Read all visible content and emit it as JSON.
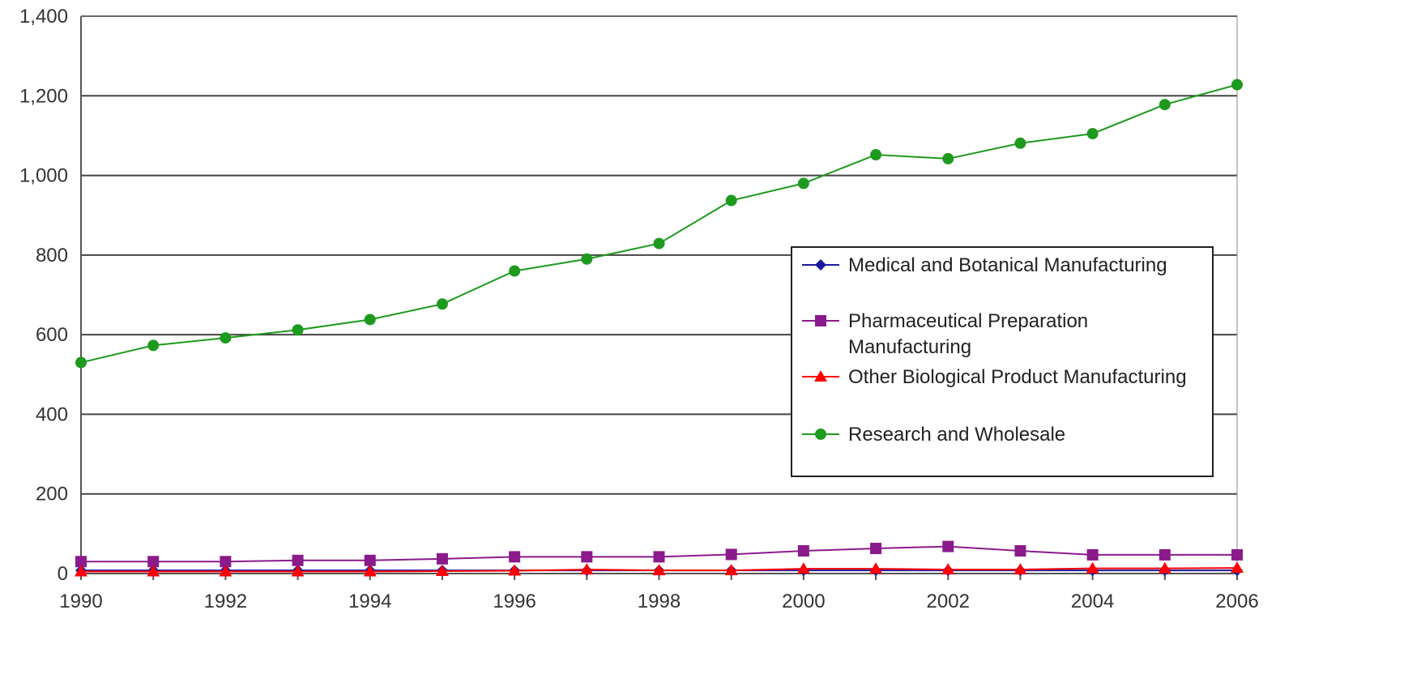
{
  "chart_data": {
    "type": "line",
    "title": "",
    "xlabel": "",
    "ylabel": "",
    "x": [
      1990,
      1991,
      1992,
      1993,
      1994,
      1995,
      1996,
      1997,
      1998,
      1999,
      2000,
      2001,
      2002,
      2003,
      2004,
      2005,
      2006
    ],
    "x_tick_labels": [
      "1990",
      "1992",
      "1994",
      "1996",
      "1998",
      "2000",
      "2002",
      "2004",
      "2006"
    ],
    "y_tick_labels": [
      "0",
      "200",
      "400",
      "600",
      "800",
      "1,000",
      "1,200",
      "1,400"
    ],
    "xlim": [
      1990,
      2006
    ],
    "ylim": [
      0,
      1400
    ],
    "grid": "horizontal",
    "legend_position": "right",
    "series": [
      {
        "name": "Medical and Botanical Manufacturing",
        "marker": "diamond",
        "color": "#1a1aa0",
        "values": [
          8,
          8,
          8,
          8,
          8,
          8,
          8,
          8,
          8,
          8,
          8,
          8,
          8,
          8,
          8,
          8,
          8
        ]
      },
      {
        "name": "Pharmaceutical Preparation Manufacturing",
        "marker": "square",
        "color": "#8b1a8b",
        "values": [
          30,
          30,
          30,
          33,
          33,
          37,
          42,
          42,
          42,
          48,
          57,
          63,
          68,
          57,
          47,
          47,
          47
        ]
      },
      {
        "name": "Other Biological Product Manufacturing",
        "marker": "triangle",
        "color": "#ff0000",
        "values": [
          5,
          5,
          5,
          5,
          5,
          6,
          7,
          10,
          8,
          8,
          12,
          12,
          10,
          10,
          13,
          13,
          14
        ]
      },
      {
        "name": "Research and Wholesale",
        "marker": "circle",
        "color": "#1e9a1e",
        "values": [
          530,
          573,
          592,
          612,
          638,
          677,
          760,
          790,
          829,
          937,
          980,
          1052,
          1042,
          1081,
          1105,
          1178,
          1228
        ]
      }
    ]
  }
}
